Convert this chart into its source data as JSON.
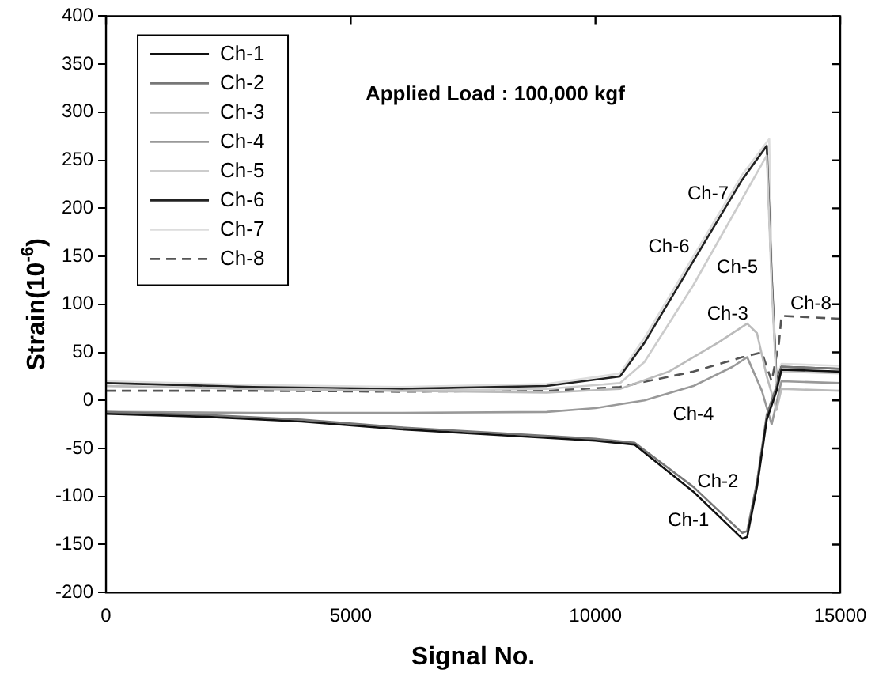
{
  "chart_data": {
    "type": "line",
    "xlabel": "Signal No.",
    "ylabel": "Strain(10$^{-6}$)",
    "xlim": [
      0,
      15000
    ],
    "xticks": [
      0,
      5000,
      10000,
      15000
    ],
    "ylim": [
      -200,
      400
    ],
    "yticks": [
      -200,
      -150,
      -100,
      -50,
      0,
      50,
      100,
      150,
      200,
      250,
      300,
      350,
      400
    ],
    "grid": false,
    "legend": "top left",
    "marker": "none",
    "annotations": [
      "Applied Load : 100,000 kgf",
      "Ch-7",
      "Ch-6",
      "Ch-5",
      "Ch-3",
      "Ch-8",
      "Ch-4",
      "Ch-2",
      "Ch-1"
    ],
    "series": [
      {
        "name": "Ch-1",
        "color": "#111111",
        "x": [
          0,
          2000,
          4000,
          6000,
          8000,
          10000,
          10800,
          12000,
          13000,
          13100,
          13300,
          13500,
          13700,
          13800,
          15000
        ],
        "values": [
          -14,
          -17,
          -22,
          -30,
          -36,
          -42,
          -46,
          -95,
          -144,
          -142,
          -90,
          -20,
          10,
          32,
          30
        ]
      },
      {
        "name": "Ch-2",
        "color": "#777777",
        "x": [
          0,
          2000,
          4000,
          6000,
          8000,
          10000,
          10800,
          12000,
          13000,
          13100,
          13300,
          13500,
          13700,
          13800,
          15000
        ],
        "values": [
          -12,
          -15,
          -20,
          -28,
          -34,
          -40,
          -44,
          -90,
          -138,
          -136,
          -85,
          -15,
          15,
          35,
          33
        ]
      },
      {
        "name": "Ch-3",
        "color": "#bbbbbb",
        "x": [
          0,
          3000,
          6000,
          9000,
          10500,
          11500,
          12500,
          13100,
          13300,
          13500,
          13700,
          13800,
          15000
        ],
        "values": [
          15,
          12,
          10,
          8,
          12,
          30,
          60,
          80,
          70,
          25,
          -10,
          12,
          10
        ]
      },
      {
        "name": "Ch-4",
        "color": "#999999",
        "x": [
          0,
          3000,
          6000,
          9000,
          10000,
          11000,
          12000,
          12800,
          13100,
          13400,
          13600,
          13800,
          15000
        ],
        "values": [
          -12,
          -13,
          -13,
          -12,
          -8,
          0,
          15,
          35,
          45,
          10,
          -25,
          20,
          18
        ]
      },
      {
        "name": "Ch-5",
        "color": "#cccccc",
        "x": [
          0,
          3000,
          6000,
          9000,
          10500,
          11000,
          12000,
          13000,
          13500,
          13600,
          13700,
          13800,
          15000
        ],
        "values": [
          15,
          12,
          10,
          12,
          18,
          40,
          120,
          210,
          255,
          120,
          15,
          30,
          28
        ]
      },
      {
        "name": "Ch-6",
        "color": "#222222",
        "x": [
          0,
          3000,
          6000,
          9000,
          10500,
          11000,
          12000,
          13000,
          13500,
          13600,
          13700,
          13800,
          15000
        ],
        "values": [
          18,
          14,
          12,
          15,
          25,
          60,
          145,
          230,
          265,
          130,
          20,
          35,
          33
        ]
      },
      {
        "name": "Ch-7",
        "color": "#dddddd",
        "x": [
          0,
          3000,
          6000,
          9000,
          10500,
          11000,
          12000,
          13000,
          13550,
          13600,
          13700,
          13800,
          15000
        ],
        "values": [
          20,
          16,
          14,
          17,
          28,
          65,
          150,
          235,
          272,
          135,
          25,
          38,
          36
        ]
      },
      {
        "name": "Ch-8",
        "color": "#555555",
        "line_style": "dashed",
        "x": [
          0,
          3000,
          6000,
          9000,
          10500,
          12000,
          13000,
          13400,
          13600,
          13750,
          13800,
          15000
        ],
        "values": [
          10,
          10,
          9,
          10,
          14,
          30,
          45,
          50,
          20,
          60,
          88,
          85
        ]
      }
    ]
  }
}
